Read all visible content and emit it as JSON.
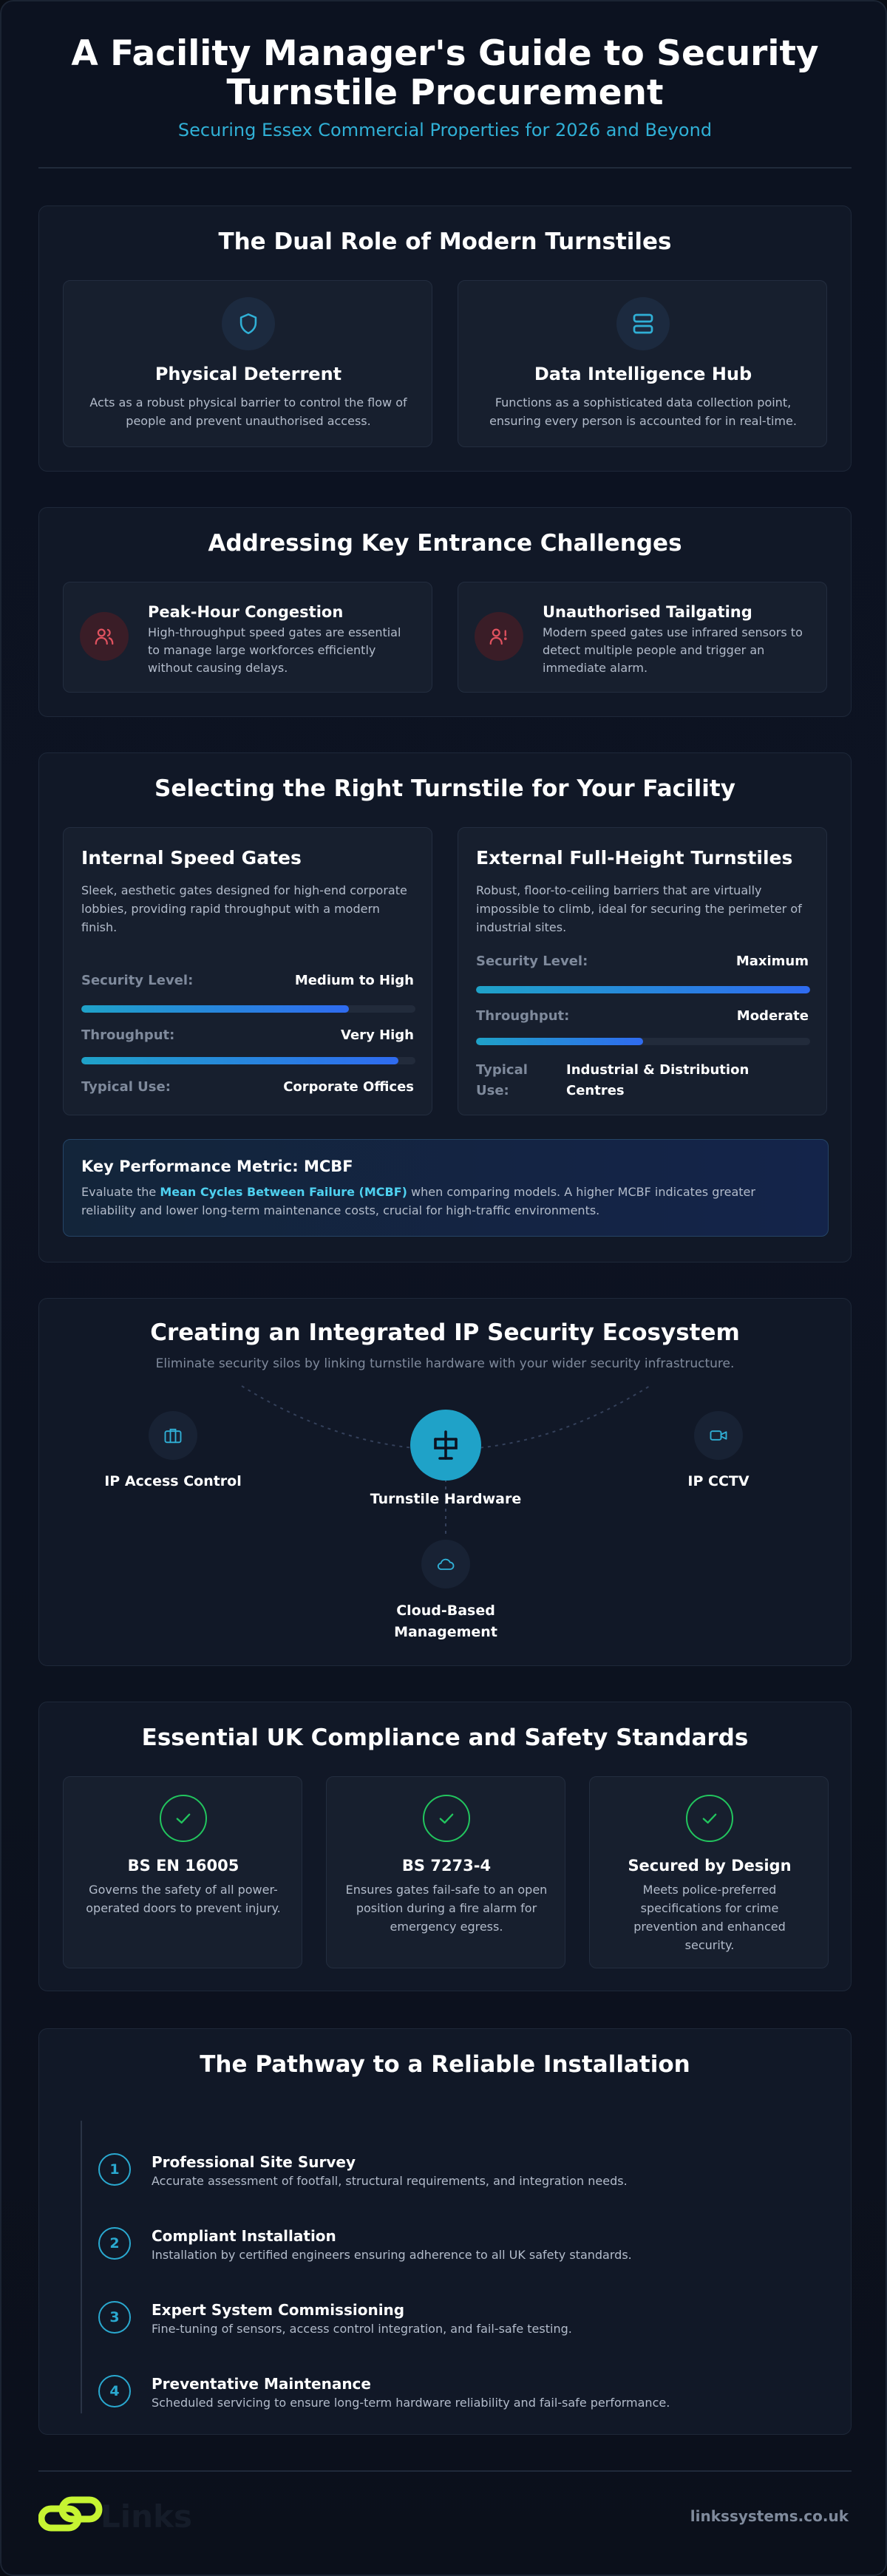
{
  "header": {
    "title": "A Facility Manager's Guide to Security Turnstile Procurement",
    "subtitle": "Securing Essex Commercial Properties for 2026 and Beyond"
  },
  "dual_role": {
    "title": "The Dual Role of Modern Turnstiles",
    "cards": [
      {
        "icon": "shield-icon",
        "title": "Physical Deterrent",
        "text": "Acts as a robust physical barrier to control the flow of people and prevent unauthorised access."
      },
      {
        "icon": "server-icon",
        "title": "Data Intelligence Hub",
        "text": "Functions as a sophisticated data collection point, ensuring every person is accounted for in real-time."
      }
    ]
  },
  "challenges": {
    "title": "Addressing Key Entrance Challenges",
    "cards": [
      {
        "icon": "users-icon",
        "title": "Peak-Hour Congestion",
        "text": "High-throughput speed gates are essential to manage large workforces efficiently without causing delays."
      },
      {
        "icon": "user-alert-icon",
        "title": "Unauthorised Tailgating",
        "text": "Modern speed gates use infrared sensors to detect multiple people and trigger an immediate alarm."
      }
    ]
  },
  "selecting": {
    "title": "Selecting the Right Turnstile for Your Facility",
    "options": [
      {
        "title": "Internal Speed Gates",
        "text": "Sleek, aesthetic gates designed for high-end corporate lobbies, providing rapid throughput with a modern finish.",
        "security_label": "Security Level:",
        "security_value": "Medium to High",
        "security_fill": 0.8,
        "throughput_label": "Throughput:",
        "throughput_value": "Very High",
        "throughput_fill": 0.95,
        "use_label": "Typical Use:",
        "use_value": "Corporate Offices"
      },
      {
        "title": "External Full-Height Turnstiles",
        "text": "Robust, floor-to-ceiling barriers that are virtually impossible to climb, ideal for securing the perimeter of industrial sites.",
        "security_label": "Security Level:",
        "security_value": "Maximum",
        "security_fill": 1.0,
        "throughput_label": "Throughput:",
        "throughput_value": "Moderate",
        "throughput_fill": 0.5,
        "use_label": "Typical Use:",
        "use_value": "Industrial & Distribution Centres"
      }
    ],
    "kpm": {
      "title": "Key Performance Metric: MCBF",
      "text_before": "Evaluate the ",
      "highlight": "Mean Cycles Between Failure (MCBF)",
      "text_after": " when comparing models. A higher MCBF indicates greater reliability and lower long-term maintenance costs, crucial for high-traffic environments."
    }
  },
  "ecosystem": {
    "title": "Creating an Integrated IP Security Ecosystem",
    "subtitle": "Eliminate security silos by linking turnstile hardware with your wider security infrastructure.",
    "nodes": {
      "access": "IP Access Control",
      "hardware": "Turnstile Hardware",
      "cctv": "IP CCTV",
      "cloud_line1": "Cloud-Based",
      "cloud_line2": "Management"
    }
  },
  "compliance": {
    "title": "Essential UK Compliance and Safety Standards",
    "cards": [
      {
        "title": "BS EN 16005",
        "text": "Governs the safety of all power-operated doors to prevent injury."
      },
      {
        "title": "BS 7273-4",
        "text": "Ensures gates fail-safe to an open position during a fire alarm for emergency egress."
      },
      {
        "title": "Secured by Design",
        "text": "Meets police-preferred specifications for crime prevention and enhanced security."
      }
    ]
  },
  "pathway": {
    "title": "The Pathway to a Reliable Installation",
    "steps": [
      {
        "num": "1",
        "title": "Professional Site Survey",
        "text": "Accurate assessment of footfall, structural requirements, and integration needs."
      },
      {
        "num": "2",
        "title": "Compliant Installation",
        "text": "Installation by certified engineers ensuring adherence to all UK safety standards."
      },
      {
        "num": "3",
        "title": "Expert System Commissioning",
        "text": "Fine-tuning of sensors, access control integration, and fail-safe testing."
      },
      {
        "num": "4",
        "title": "Preventative Maintenance",
        "text": "Scheduled servicing to ensure long-term hardware reliability and fail-safe performance."
      }
    ]
  },
  "footer": {
    "logo_text": "Links",
    "url": "linkssystems.co.uk"
  },
  "colors": {
    "accent": "#1ea6cc",
    "warning": "#e0525f",
    "success": "#22c55e",
    "logo": "#c6f432"
  }
}
